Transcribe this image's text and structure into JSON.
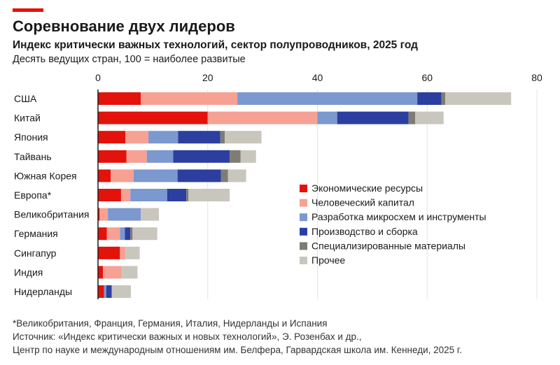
{
  "header": {
    "title": "Соревнование двух лидеров",
    "subtitle": "Индекс критически важных технологий, сектор полупроводников, 2025 год",
    "description": "Десять ведущих стран, 100 = наиболее развитые",
    "accent_color": "#e3120b"
  },
  "chart_data": {
    "type": "bar",
    "orientation": "horizontal",
    "stacked": true,
    "xlim": [
      0,
      80
    ],
    "x_ticks": [
      "0",
      "20",
      "40",
      "60",
      "80"
    ],
    "grid": true,
    "legend_position": "right-bottom",
    "categories": [
      "США",
      "Китай",
      "Япония",
      "Тайвань",
      "Южная Корея",
      "Европа*",
      "Великобритания",
      "Германия",
      "Сингапур",
      "Индия",
      "Нидерланды"
    ],
    "series": [
      {
        "name": "Экономические ресурсы",
        "color": "#e3120b",
        "values": [
          7.8,
          20.0,
          5.0,
          5.2,
          2.3,
          4.2,
          0.3,
          1.6,
          4.0,
          0.9,
          1.1
        ]
      },
      {
        "name": "Человеческий капитал",
        "color": "#f6a193",
        "values": [
          17.6,
          20.0,
          4.2,
          3.7,
          4.2,
          1.7,
          1.5,
          2.4,
          1.0,
          3.4,
          0.0
        ]
      },
      {
        "name": "Разработка микросхем и инструменты",
        "color": "#7b98cf",
        "values": [
          32.8,
          3.6,
          5.4,
          4.8,
          8.0,
          6.7,
          6.0,
          0.9,
          0.0,
          0.0,
          0.4
        ]
      },
      {
        "name": "Производство и сборка",
        "color": "#2c3fa0",
        "values": [
          4.4,
          13.0,
          7.7,
          10.3,
          7.9,
          3.5,
          0.0,
          1.0,
          0.0,
          0.0,
          1.0
        ]
      },
      {
        "name": "Специализированные материалы",
        "color": "#7e7c74",
        "values": [
          0.7,
          1.2,
          0.8,
          2.0,
          1.3,
          0.4,
          0.0,
          0.4,
          0.0,
          0.0,
          0.0
        ]
      },
      {
        "name": "Прочее",
        "color": "#c9c6bd",
        "values": [
          12.0,
          5.2,
          6.7,
          2.8,
          3.3,
          7.5,
          3.3,
          4.5,
          2.6,
          2.9,
          3.5
        ]
      }
    ]
  },
  "footnotes": {
    "note": "*Великобритания, Франция, Германия, Италия, Нидерланды и Испания",
    "source_line1": "Источник: «Индекс критически важных и новых технологий», Э. Розенбах и др.,",
    "source_line2": "Центр по науке и международным отношениям им. Белфера, Гарвардская школа им. Кеннеди, 2025 г."
  }
}
